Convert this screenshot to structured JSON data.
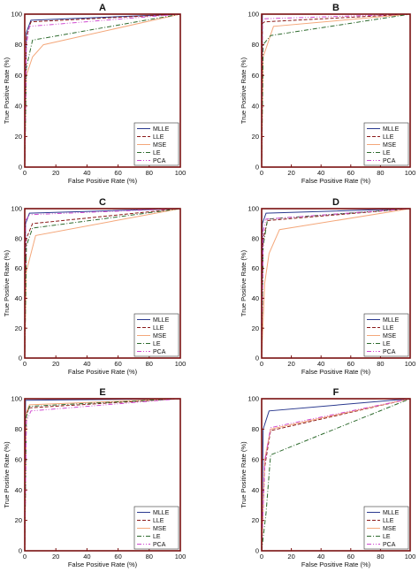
{
  "figure": {
    "frame_color": "#7a1010",
    "series_style": [
      {
        "name": "MLLE",
        "color": "#2b3a8f",
        "dash": "solid"
      },
      {
        "name": "LLE",
        "color": "#8b1a1a",
        "dash": "dashed"
      },
      {
        "name": "MSE",
        "color": "#f4a77a",
        "dash": "solid"
      },
      {
        "name": "LE",
        "color": "#2e6b2e",
        "dash": "dashdot"
      },
      {
        "name": "PCA",
        "color": "#d04ad0",
        "dash": "dashdotdot"
      }
    ]
  },
  "chart_data": [
    {
      "type": "line",
      "title": "A",
      "xlabel": "False Positive Rate (%)",
      "ylabel": "True Positive Rate (%)",
      "xlim": [
        0,
        100
      ],
      "ylim": [
        0,
        100
      ],
      "xticks": [
        "0",
        "20",
        "40",
        "60",
        "80",
        "100"
      ],
      "yticks": [
        "0",
        "20",
        "40",
        "60",
        "80",
        "100"
      ],
      "legend": "bottom-right",
      "grid": false,
      "series": [
        {
          "name": "MLLE",
          "x": [
            0,
            1,
            4,
            100
          ],
          "y": [
            0,
            88,
            96,
            100
          ]
        },
        {
          "name": "LLE",
          "x": [
            0,
            1,
            4,
            100
          ],
          "y": [
            0,
            85,
            95,
            100
          ]
        },
        {
          "name": "MSE",
          "x": [
            0,
            1,
            5,
            12,
            100
          ],
          "y": [
            0,
            60,
            72,
            80,
            100
          ]
        },
        {
          "name": "LE",
          "x": [
            0,
            1,
            5,
            100
          ],
          "y": [
            0,
            65,
            83,
            100
          ]
        },
        {
          "name": "PCA",
          "x": [
            0,
            1,
            3,
            100
          ],
          "y": [
            0,
            80,
            92,
            100
          ]
        }
      ]
    },
    {
      "type": "line",
      "title": "B",
      "xlabel": "False Positive Rate (%)",
      "ylabel": "True Positive Rate (%)",
      "xlim": [
        0,
        100
      ],
      "ylim": [
        0,
        100
      ],
      "xticks": [
        "0",
        "20",
        "40",
        "60",
        "80",
        "100"
      ],
      "yticks": [
        "0",
        "20",
        "40",
        "60",
        "80",
        "100"
      ],
      "legend": "bottom-right",
      "grid": false,
      "series": [
        {
          "name": "MLLE",
          "x": [
            0,
            0.5,
            100
          ],
          "y": [
            0,
            100,
            100
          ]
        },
        {
          "name": "LLE",
          "x": [
            0,
            0.5,
            2,
            100
          ],
          "y": [
            0,
            94,
            95,
            100
          ]
        },
        {
          "name": "MSE",
          "x": [
            0,
            1,
            8,
            100
          ],
          "y": [
            0,
            72,
            92,
            100
          ]
        },
        {
          "name": "LE",
          "x": [
            0,
            1,
            6,
            100
          ],
          "y": [
            0,
            80,
            86,
            100
          ]
        },
        {
          "name": "PCA",
          "x": [
            0,
            0.5,
            2,
            100
          ],
          "y": [
            0,
            96,
            97,
            100
          ]
        }
      ]
    },
    {
      "type": "line",
      "title": "C",
      "xlabel": "False Positive Rate (%)",
      "ylabel": "True Positive Rate (%)",
      "xlim": [
        0,
        100
      ],
      "ylim": [
        0,
        100
      ],
      "xticks": [
        "0",
        "20",
        "40",
        "60",
        "80",
        "100"
      ],
      "yticks": [
        "0",
        "20",
        "40",
        "60",
        "80",
        "100"
      ],
      "legend": "bottom-right",
      "grid": false,
      "series": [
        {
          "name": "MLLE",
          "x": [
            0,
            0.5,
            3,
            100
          ],
          "y": [
            0,
            90,
            97,
            100
          ]
        },
        {
          "name": "LLE",
          "x": [
            0,
            1,
            5,
            100
          ],
          "y": [
            0,
            80,
            90,
            100
          ]
        },
        {
          "name": "MSE",
          "x": [
            0,
            1,
            7,
            100
          ],
          "y": [
            0,
            58,
            82,
            100
          ]
        },
        {
          "name": "LE",
          "x": [
            0,
            1,
            5,
            100
          ],
          "y": [
            0,
            75,
            87,
            100
          ]
        },
        {
          "name": "PCA",
          "x": [
            0,
            0.5,
            3,
            100
          ],
          "y": [
            0,
            92,
            96,
            100
          ]
        }
      ]
    },
    {
      "type": "line",
      "title": "D",
      "xlabel": "False Positive Rate (%)",
      "ylabel": "True Positive Rate (%)",
      "xlim": [
        0,
        100
      ],
      "ylim": [
        0,
        100
      ],
      "xticks": [
        "0",
        "20",
        "40",
        "60",
        "80",
        "100"
      ],
      "yticks": [
        "0",
        "20",
        "40",
        "60",
        "80",
        "100"
      ],
      "legend": "bottom-right",
      "grid": false,
      "series": [
        {
          "name": "MLLE",
          "x": [
            0,
            0.5,
            3,
            100
          ],
          "y": [
            0,
            90,
            97,
            100
          ]
        },
        {
          "name": "LLE",
          "x": [
            0,
            1,
            4,
            100
          ],
          "y": [
            0,
            80,
            92,
            100
          ]
        },
        {
          "name": "MSE",
          "x": [
            0,
            2,
            5,
            12,
            100
          ],
          "y": [
            0,
            50,
            70,
            86,
            100
          ]
        },
        {
          "name": "LE",
          "x": [
            0,
            1,
            4,
            100
          ],
          "y": [
            0,
            75,
            93,
            100
          ]
        },
        {
          "name": "PCA",
          "x": [
            0,
            1,
            3,
            100
          ],
          "y": [
            0,
            85,
            93,
            100
          ]
        }
      ]
    },
    {
      "type": "line",
      "title": "E",
      "xlabel": "False Positive Rate (%)",
      "ylabel": "True Positive Rate (%)",
      "xlim": [
        0,
        100
      ],
      "ylim": [
        0,
        100
      ],
      "xticks": [
        "0",
        "20",
        "40",
        "60",
        "80",
        "100"
      ],
      "yticks": [
        "0",
        "20",
        "40",
        "60",
        "80",
        "100"
      ],
      "legend": "bottom-right",
      "grid": false,
      "series": [
        {
          "name": "MLLE",
          "x": [
            0,
            0.5,
            100
          ],
          "y": [
            0,
            99,
            100
          ]
        },
        {
          "name": "LLE",
          "x": [
            0,
            1,
            3,
            100
          ],
          "y": [
            0,
            90,
            94,
            100
          ]
        },
        {
          "name": "MSE",
          "x": [
            0,
            1,
            3,
            100
          ],
          "y": [
            0,
            91,
            96,
            100
          ]
        },
        {
          "name": "LE",
          "x": [
            0,
            1,
            3,
            100
          ],
          "y": [
            0,
            88,
            95,
            100
          ]
        },
        {
          "name": "PCA",
          "x": [
            0,
            1,
            4,
            100
          ],
          "y": [
            0,
            85,
            92,
            100
          ]
        }
      ]
    },
    {
      "type": "line",
      "title": "F",
      "xlabel": "False Positive Rate (%)",
      "ylabel": "True Positive Rate (%)",
      "xlim": [
        0,
        100
      ],
      "ylim": [
        0,
        100
      ],
      "xticks": [
        "0",
        "20",
        "40",
        "60",
        "80",
        "100"
      ],
      "yticks": [
        "0",
        "20",
        "40",
        "60",
        "80",
        "100"
      ],
      "legend": "bottom-right",
      "grid": false,
      "series": [
        {
          "name": "MLLE",
          "x": [
            0,
            1,
            5,
            100
          ],
          "y": [
            0,
            80,
            92,
            100
          ]
        },
        {
          "name": "LLE",
          "x": [
            0,
            2,
            6,
            100
          ],
          "y": [
            0,
            55,
            79,
            100
          ]
        },
        {
          "name": "MSE",
          "x": [
            0,
            2,
            6,
            100
          ],
          "y": [
            0,
            60,
            80,
            100
          ]
        },
        {
          "name": "LE",
          "x": [
            0,
            3,
            6,
            100
          ],
          "y": [
            0,
            25,
            63,
            100
          ]
        },
        {
          "name": "PCA",
          "x": [
            0,
            2,
            6,
            100
          ],
          "y": [
            0,
            58,
            81,
            100
          ]
        }
      ]
    }
  ]
}
